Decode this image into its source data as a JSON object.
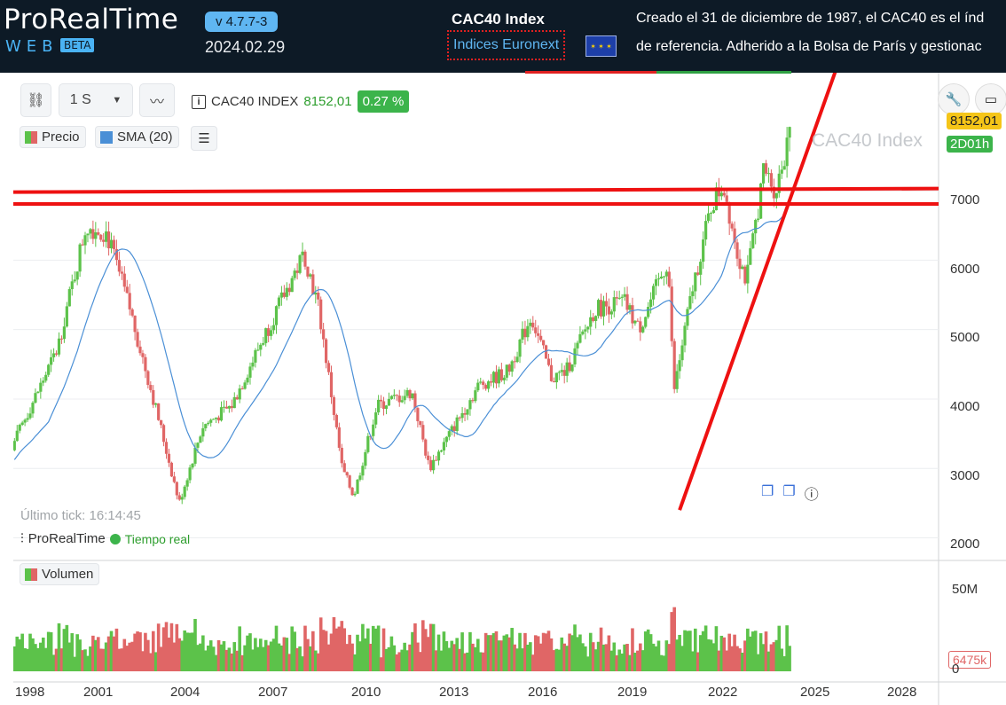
{
  "header": {
    "brand": "ProRealTime",
    "brand_sub": "WEB",
    "beta": "BETA",
    "version": "v 4.7.7-3",
    "date": "2024.02.29",
    "index_title": "CAC40 Index",
    "index_link": "Indices Euronext",
    "description_line1": "Creado el 31 de diciembre de 1987, el CAC40 es el índ",
    "description_line2": "de referencia. Adherido a la Bolsa de París y gestionac",
    "colors": {
      "background": "#0d1a26",
      "accent": "#4ab3f4"
    }
  },
  "toolbar": {
    "timeframe": "1 S",
    "instrument": "CAC40 INDEX",
    "last_price": "8152,01",
    "change_pct": "0.27 %"
  },
  "legend": {
    "price": "Precio",
    "sma": "SMA (20)",
    "volume": "Volumen"
  },
  "overlay": {
    "watermark": "CAC40 Index",
    "last_tick": "Último tick: 16:14:45",
    "provider": "ProRealTime",
    "realtime": "Tiempo real",
    "price_tag": "8152,01",
    "time_tag": "2D01h",
    "volume_tag": "6475k"
  },
  "axes": {
    "price_labels": [
      "7000",
      "6000",
      "5000",
      "4000",
      "3000",
      "2000"
    ],
    "volume_labels": [
      "50M",
      "0"
    ],
    "x_labels": [
      "1998",
      "2001",
      "2004",
      "2007",
      "2010",
      "2013",
      "2016",
      "2019",
      "2022",
      "2025",
      "2028"
    ]
  },
  "chart_data": {
    "type": "line",
    "x": [
      1997.0,
      1998.0,
      1999.0,
      2000.0,
      2000.7,
      2001.5,
      2002.5,
      2003.2,
      2004.0,
      2005.0,
      2006.0,
      2007.5,
      2008.0,
      2008.8,
      2009.2,
      2010.0,
      2011.2,
      2011.8,
      2012.5,
      2013.5,
      2014.5,
      2015.3,
      2016.0,
      2016.5,
      2017.5,
      2018.5,
      2019.0,
      2020.0,
      2020.2,
      2020.8,
      2021.5,
      2021.9,
      2022.4,
      2022.7,
      2023.3,
      2023.7,
      2024.0,
      2024.2
    ],
    "series": [
      {
        "values": [
          2900,
          3800,
          4700,
          6500,
          6400,
          5300,
          3700,
          2500,
          3600,
          3900,
          4800,
          6100,
          5300,
          3000,
          2600,
          3900,
          4100,
          3000,
          3500,
          4200,
          4400,
          5200,
          4300,
          4400,
          5300,
          5400,
          5000,
          6000,
          4100,
          5500,
          6800,
          7100,
          6100,
          5700,
          7300,
          7000,
          7500,
          8150
        ]
      }
    ],
    "ylim": [
      1700,
      8700
    ],
    "xlim": [
      1997.5,
      2029.3
    ],
    "volume_max_label": "50M",
    "sma_period": 20,
    "lines": [
      {
        "kind": "horizontal",
        "y": 6980
      },
      {
        "kind": "horizontal",
        "y": 6810
      },
      {
        "kind": "trend",
        "from": [
          2020.4,
          2400
        ],
        "to": [
          2026.5,
          9600
        ]
      }
    ],
    "colors": {
      "up": "#5cc24a",
      "down": "#e06666",
      "sma": "#4a8fd6",
      "lines": "#ee1111"
    }
  }
}
